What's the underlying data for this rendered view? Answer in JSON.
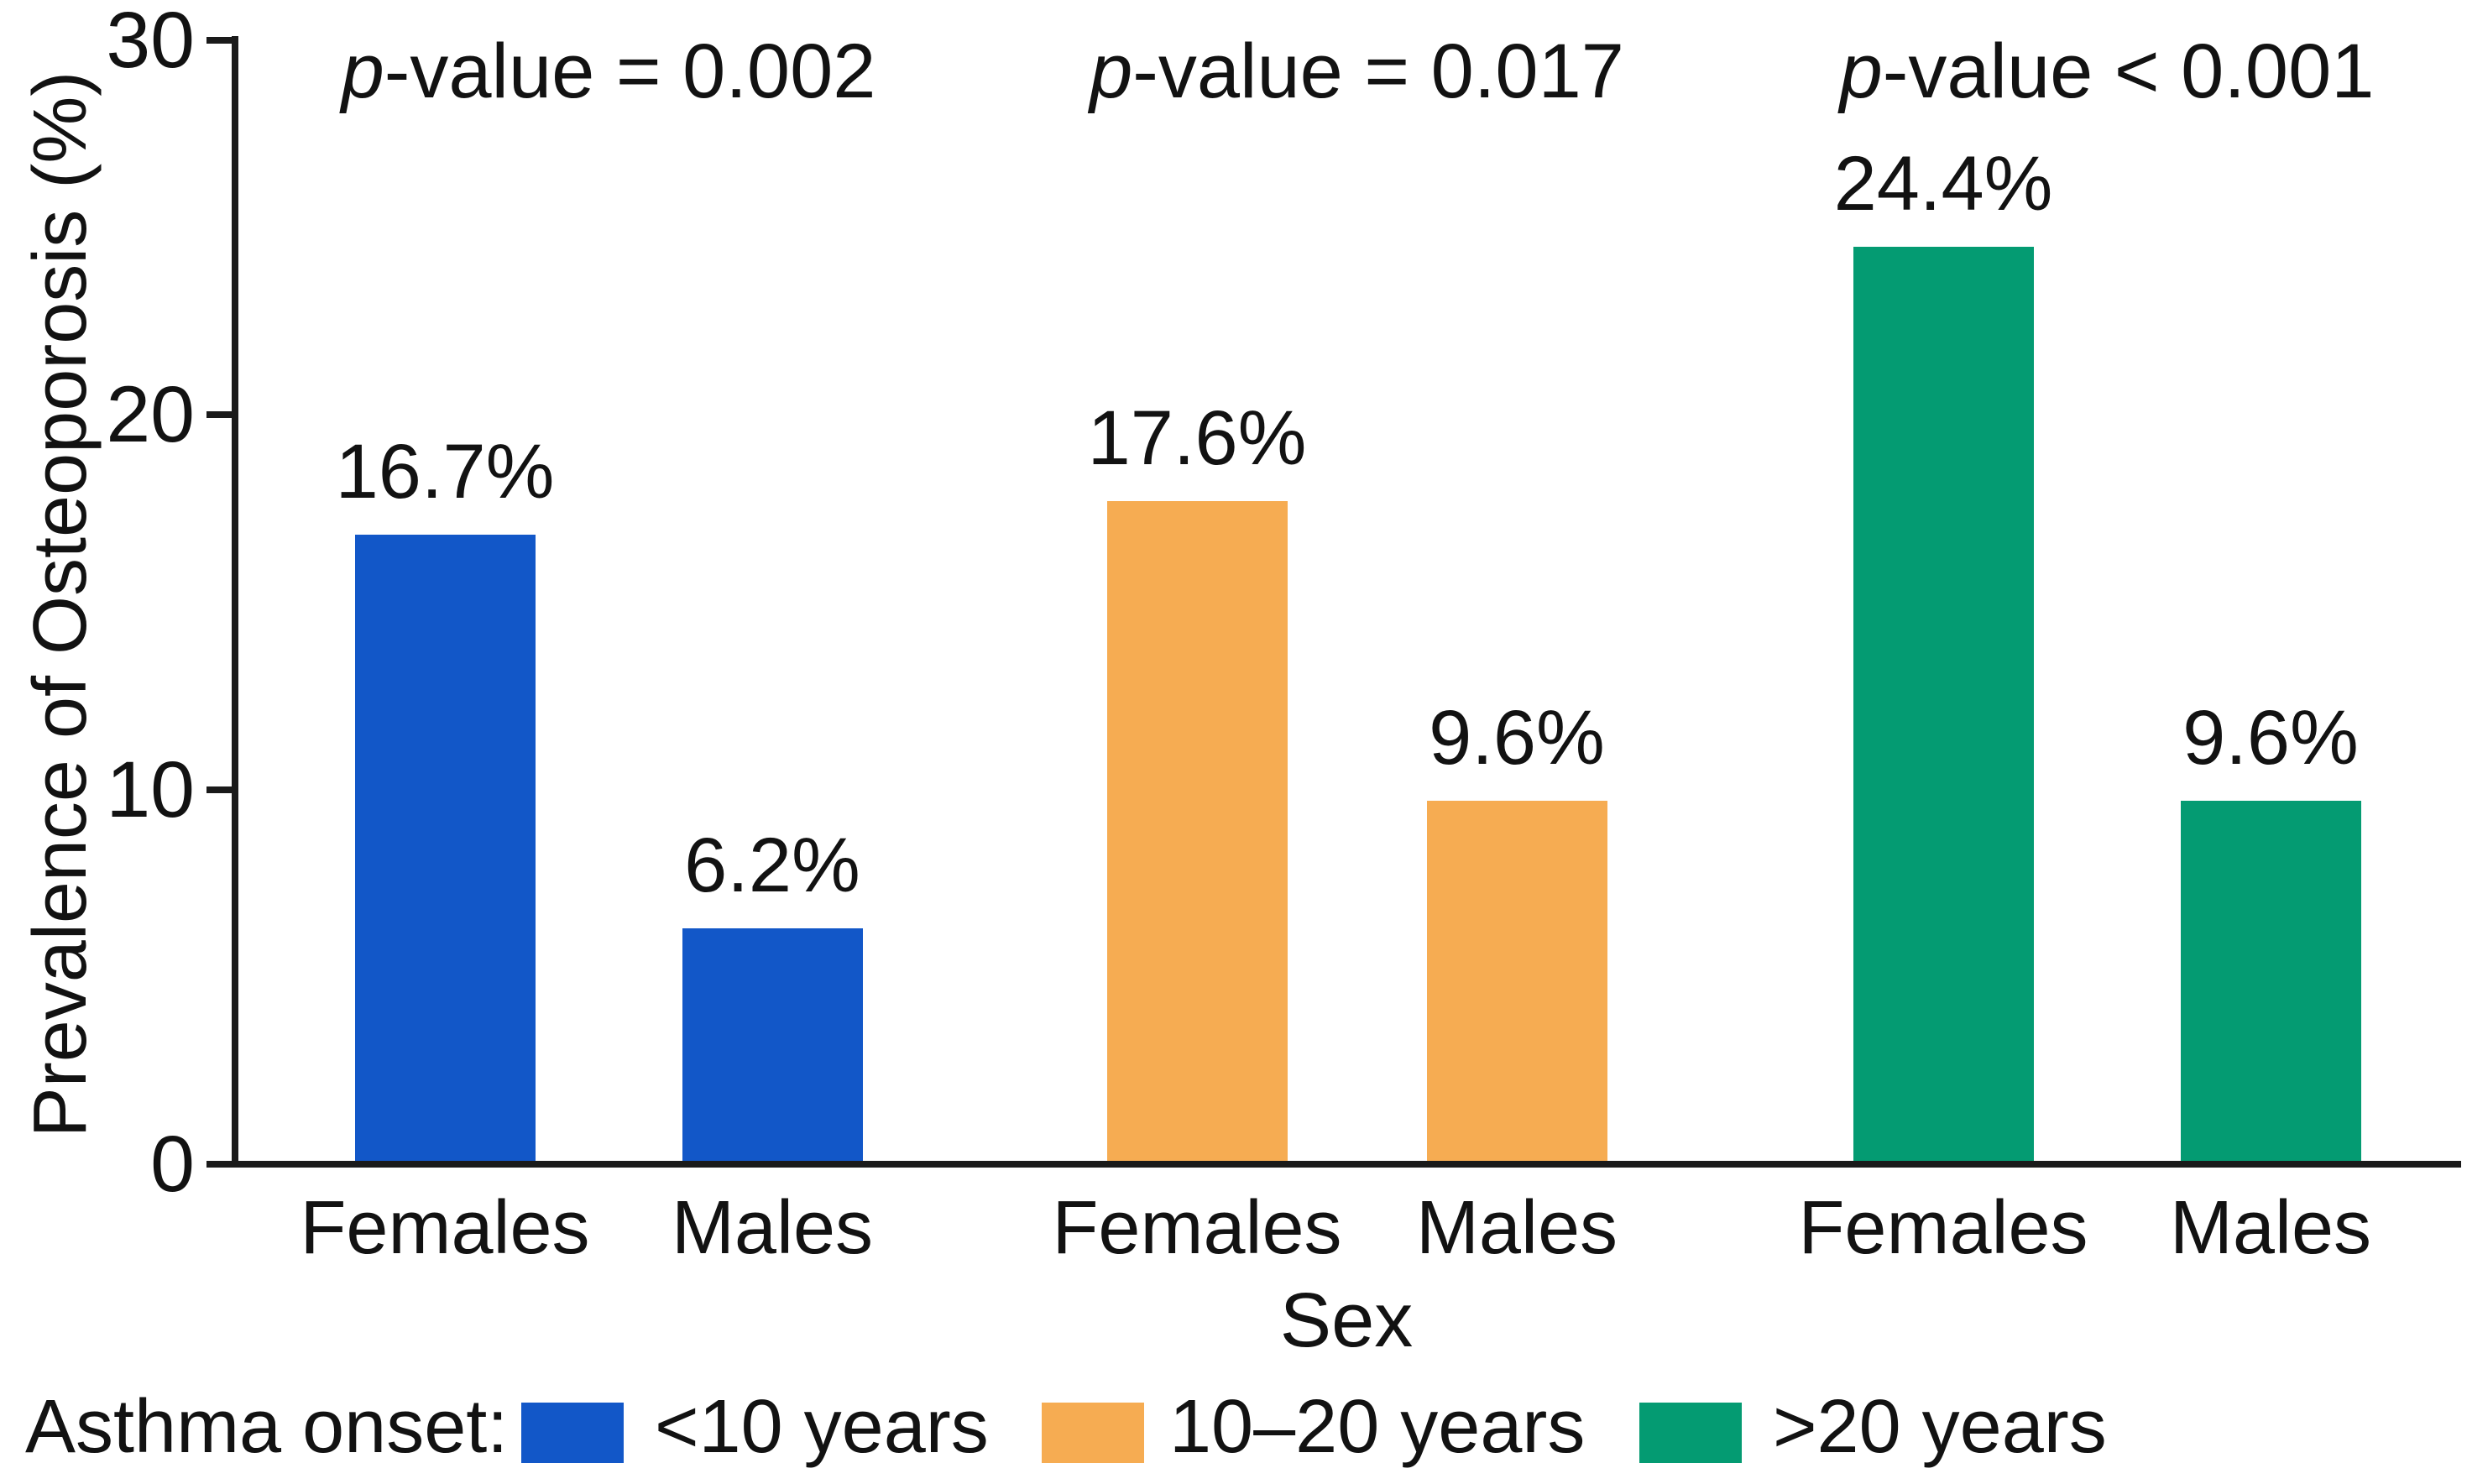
{
  "page": {
    "background": "#ffffff",
    "text_color": "#121212",
    "axis_color": "#1a1a1a"
  },
  "chart_data": {
    "type": "bar",
    "title": "",
    "xlabel": "Sex",
    "ylabel": "Prevalence of Osteoporosis (%)",
    "ylim": [
      0,
      30
    ],
    "yticks": [
      0,
      10,
      20,
      30
    ],
    "grid": false,
    "legend_position": "bottom",
    "legend_title": "Asthma onset:",
    "bar_categories": [
      "Females",
      "Males"
    ],
    "groups": [
      {
        "legend_label": "<10 years",
        "color": "#1257C8",
        "p_value_label": "p-value = 0.002",
        "p_italic": "p",
        "p_rest": "-value = 0.002",
        "bars": [
          {
            "category": "Females",
            "value": 16.7,
            "value_label": "16.7%"
          },
          {
            "category": "Males",
            "value": 6.2,
            "value_label": "6.2%"
          }
        ]
      },
      {
        "legend_label": "10–20 years",
        "color": "#F6AC52",
        "p_value_label": "p-value = 0.017",
        "p_italic": "p",
        "p_rest": "-value = 0.017",
        "bars": [
          {
            "category": "Females",
            "value": 17.6,
            "value_label": "17.6%"
          },
          {
            "category": "Males",
            "value": 9.6,
            "value_label": "9.6%"
          }
        ]
      },
      {
        "legend_label": ">20 years",
        "color": "#049B72",
        "p_value_label": "p-value < 0.001",
        "p_italic": "p",
        "p_rest": "-value < 0.001",
        "bars": [
          {
            "category": "Females",
            "value": 24.4,
            "value_label": "24.4%"
          },
          {
            "category": "Males",
            "value": 9.6,
            "value_label": "9.6%"
          }
        ]
      }
    ]
  }
}
